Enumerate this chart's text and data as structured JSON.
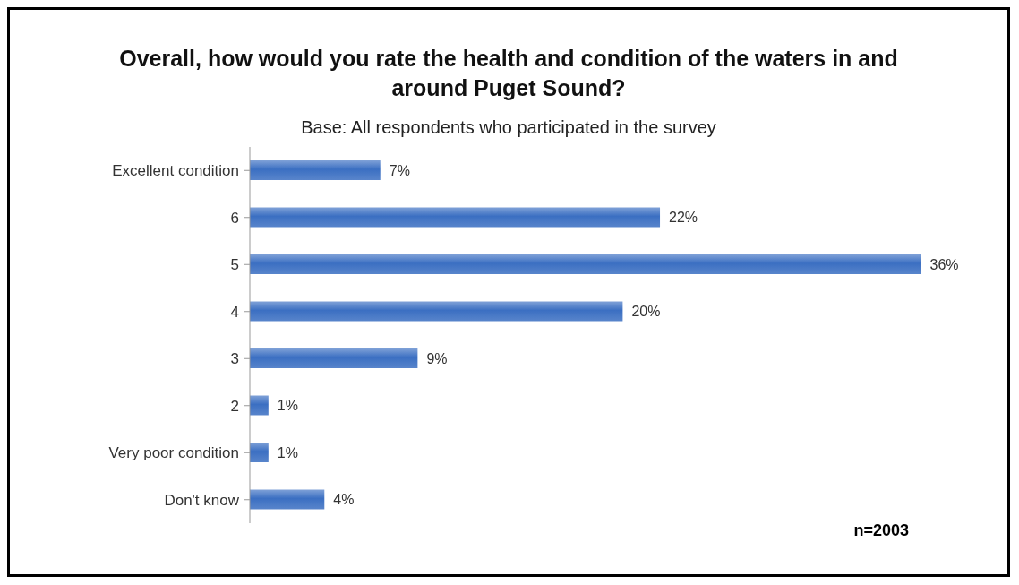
{
  "chart_data": {
    "type": "bar",
    "orientation": "horizontal",
    "title": "Overall, how would you rate the health and condition of the waters in and around Puget Sound?",
    "subtitle": "Base: All respondents who participated in the survey",
    "categories": [
      "Excellent condition",
      "6",
      "5",
      "4",
      "3",
      "2",
      "Very poor condition",
      "Don't know"
    ],
    "values": [
      7,
      22,
      36,
      20,
      9,
      1,
      1,
      4
    ],
    "value_labels": [
      "7%",
      "22%",
      "36%",
      "20%",
      "9%",
      "1%",
      "1%",
      "4%"
    ],
    "color": "#3b6fc2",
    "annotations": [
      "n=2003"
    ]
  }
}
